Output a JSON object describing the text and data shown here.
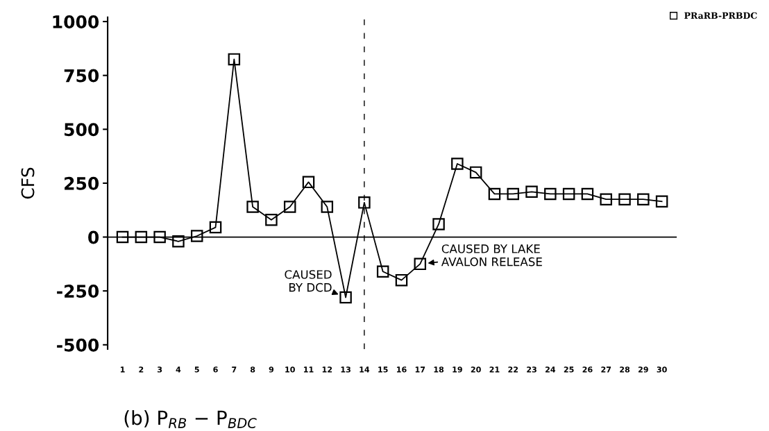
{
  "chart_data": {
    "type": "line",
    "ylabel": "CFS",
    "categories": [
      "1",
      "2",
      "3",
      "4",
      "5",
      "6",
      "7",
      "8",
      "9",
      "10",
      "11",
      "12",
      "13",
      "14",
      "15",
      "16",
      "17",
      "18",
      "19",
      "20",
      "21",
      "22",
      "23",
      "24",
      "25",
      "26",
      "27",
      "28",
      "29",
      "30"
    ],
    "series": [
      {
        "name": "PRaRB-PRBDC",
        "color": "#000000",
        "values": [
          0,
          0,
          0,
          -20,
          5,
          45,
          825,
          140,
          80,
          140,
          255,
          140,
          -280,
          160,
          -160,
          -200,
          -125,
          60,
          340,
          300,
          200,
          200,
          210,
          200,
          200,
          200,
          175,
          175,
          175,
          165
        ]
      }
    ],
    "ylim": [
      -520,
      1020
    ],
    "yticks": [
      -500,
      -250,
      0,
      250,
      500,
      750,
      1000
    ],
    "ref_lines": [
      {
        "axis": "y",
        "value": 0,
        "color": "#000000",
        "line_style": "solid"
      },
      {
        "axis": "x",
        "value": "14",
        "color": "#000000",
        "line_style": "dashed"
      }
    ],
    "annotations": [
      {
        "text": "CAUSED\nBY DCD",
        "x": "13",
        "y": -280
      },
      {
        "text": "CAUSED BY LAKE\nAVALON RELEASE",
        "x": "17",
        "y": -125
      },
      "(b) P$_{RB}$ − P$_{BDC}$"
    ],
    "marker": "square",
    "line_style": "solid",
    "legend": "top right",
    "grid": false
  }
}
